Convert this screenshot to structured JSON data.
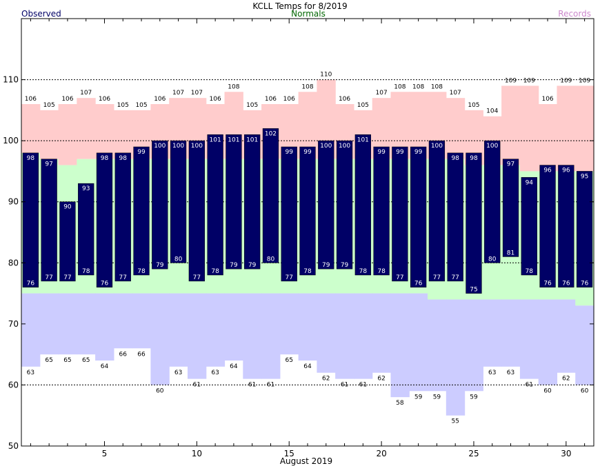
{
  "chart_data": {
    "type": "bar",
    "title": "KCLL Temps for 8/2019",
    "xlabel": "August 2019",
    "ylabel": "",
    "legend": {
      "observed": "Observed",
      "normals": "Normals",
      "records": "Records",
      "placement": "top",
      "colors": {
        "observed": "#000066",
        "normals": "#006600",
        "records": "#cc88cc"
      }
    },
    "colors": {
      "observed_bar": "#000066",
      "normal_band": "#ccffcc",
      "record_high_band": "#ffcccc",
      "record_low_band": "#ccccff"
    },
    "ylim": [
      50,
      120
    ],
    "yticks": [
      50,
      60,
      70,
      80,
      90,
      100,
      110
    ],
    "xticks": [
      5,
      10,
      15,
      20,
      25,
      30
    ],
    "gridlines": [
      60,
      80,
      90,
      100,
      110
    ],
    "grid": true,
    "days": [
      1,
      2,
      3,
      4,
      5,
      6,
      7,
      8,
      9,
      10,
      11,
      12,
      13,
      14,
      15,
      16,
      17,
      18,
      19,
      20,
      21,
      22,
      23,
      24,
      25,
      26,
      27,
      28,
      29,
      30,
      31
    ],
    "series": [
      {
        "name": "Observed",
        "key": "obs_high",
        "values": [
          98,
          97,
          90,
          93,
          98,
          98,
          99,
          100,
          100,
          100,
          101,
          101,
          101,
          102,
          99,
          99,
          100,
          100,
          101,
          99,
          99,
          99,
          100,
          98,
          98,
          100,
          97,
          94,
          96,
          96,
          95
        ]
      },
      {
        "name": "Observed",
        "key": "obs_low",
        "values": [
          76,
          77,
          77,
          78,
          76,
          77,
          78,
          79,
          80,
          77,
          78,
          79,
          79,
          80,
          77,
          78,
          79,
          79,
          78,
          78,
          77,
          76,
          77,
          77,
          75,
          80,
          81,
          78,
          76,
          76,
          76
        ]
      },
      {
        "key": "record_high",
        "values": [
          106,
          105,
          106,
          107,
          106,
          105,
          105,
          106,
          107,
          107,
          106,
          108,
          105,
          106,
          106,
          108,
          110,
          106,
          105,
          107,
          108,
          108,
          108,
          107,
          105,
          104,
          109,
          109,
          106,
          109,
          109
        ]
      },
      {
        "key": "record_low",
        "values": [
          63,
          65,
          65,
          65,
          64,
          66,
          66,
          60,
          63,
          61,
          63,
          64,
          61,
          61,
          65,
          64,
          62,
          61,
          61,
          62,
          58,
          59,
          59,
          55,
          59,
          63,
          63,
          61,
          60,
          62,
          60
        ]
      },
      {
        "name": "Normals",
        "key": "normal_high",
        "values": [
          98,
          97,
          96,
          97,
          97,
          97,
          97,
          97,
          97,
          97,
          97,
          97,
          97,
          97,
          97,
          97,
          97,
          97,
          97,
          97,
          97,
          97,
          97,
          97,
          96,
          96,
          96,
          95,
          95,
          95,
          95
        ]
      },
      {
        "name": "Normals",
        "key": "normal_low",
        "values": [
          75,
          75,
          75,
          75,
          75,
          75,
          75,
          75,
          75,
          75,
          75,
          75,
          75,
          75,
          75,
          75,
          75,
          75,
          75,
          75,
          75,
          75,
          74,
          74,
          74,
          74,
          74,
          74,
          74,
          74,
          73
        ]
      }
    ]
  }
}
